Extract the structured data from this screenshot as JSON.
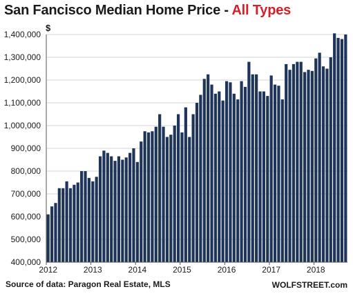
{
  "title": {
    "main": "San Fancisco Median Home Price - ",
    "highlight": "All Types",
    "highlight_color": "#d42027"
  },
  "unit_label": "$",
  "source": "Source of data: Paragon Real Estate, MLS",
  "brand": "WOLFSTREET.com",
  "colors": {
    "bar": "#1f3459",
    "grid": "#cfd4da",
    "axis": "#555555"
  },
  "chart_data": {
    "type": "bar",
    "title": "San Fancisco Median Home Price - All Types",
    "xlabel": "",
    "ylabel": "$",
    "ylim": [
      400000,
      1400000
    ],
    "y_ticks": [
      400000,
      500000,
      600000,
      700000,
      800000,
      900000,
      1000000,
      1100000,
      1200000,
      1300000,
      1400000
    ],
    "y_tick_labels": [
      "400,000",
      "500,000",
      "600,000",
      "700,000",
      "800,000",
      "900,000",
      "1,000,000",
      "1,100,000",
      "1,200,000",
      "1,300,000",
      "1,400,000"
    ],
    "x_tick_labels": [
      "2012",
      "2013",
      "2014",
      "2015",
      "2016",
      "2017",
      "2018"
    ],
    "grid": true,
    "frequency": "monthly",
    "start": "2012-01",
    "values": [
      610000,
      645000,
      660000,
      725000,
      725000,
      755000,
      725000,
      740000,
      750000,
      800000,
      800000,
      770000,
      755000,
      775000,
      865000,
      890000,
      880000,
      865000,
      845000,
      865000,
      850000,
      860000,
      880000,
      900000,
      840000,
      930000,
      975000,
      970000,
      975000,
      995000,
      1050000,
      995000,
      950000,
      960000,
      1000000,
      1050000,
      970000,
      1080000,
      950000,
      1050000,
      1100000,
      1135000,
      1205000,
      1225000,
      1180000,
      1140000,
      1150000,
      1110000,
      1195000,
      1190000,
      1140000,
      1115000,
      1195000,
      1170000,
      1280000,
      1225000,
      1225000,
      1150000,
      1150000,
      1130000,
      1220000,
      1180000,
      1175000,
      1115000,
      1270000,
      1245000,
      1270000,
      1280000,
      1280000,
      1235000,
      1245000,
      1240000,
      1295000,
      1320000,
      1260000,
      1250000,
      1300000,
      1405000,
      1385000,
      1380000,
      1400000
    ]
  }
}
